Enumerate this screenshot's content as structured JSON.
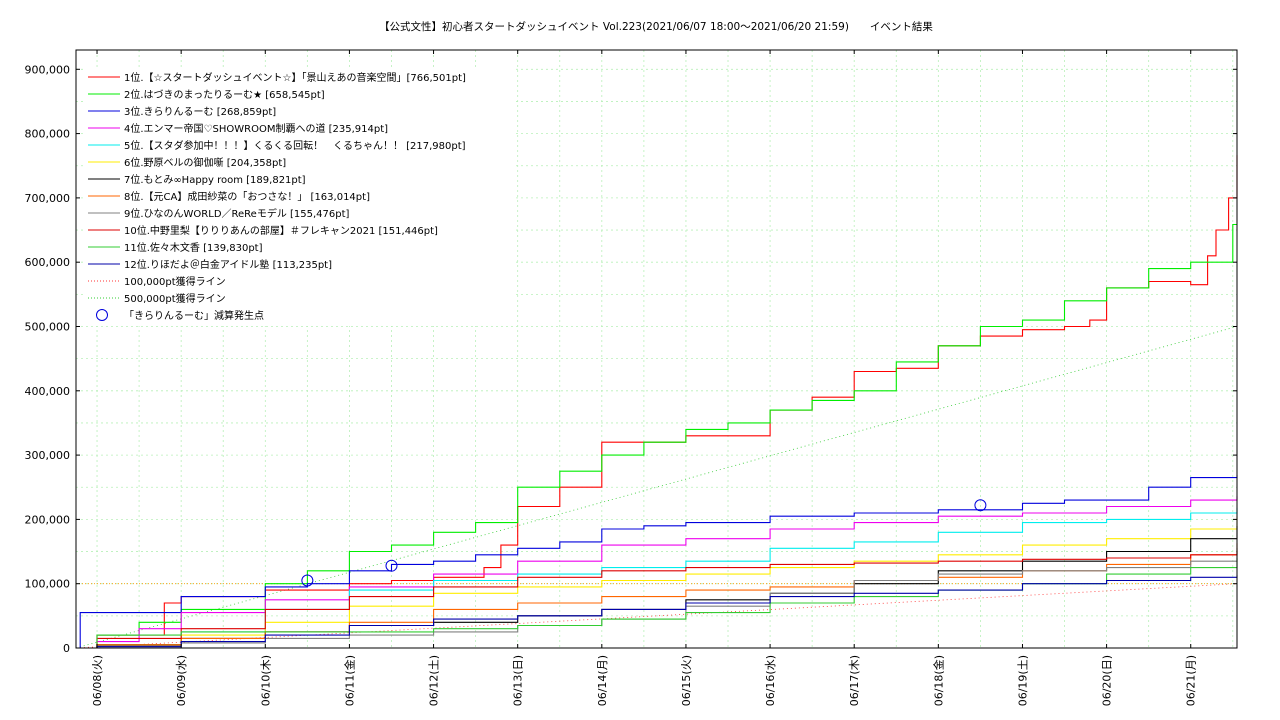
{
  "chart_data": {
    "type": "line",
    "title": "【公式文性】初心者スタートダッシュイベント Vol.223(2021/06/07 18:00〜2021/06/20 21:59)　　イベント結果",
    "xlabel": "",
    "ylabel": "",
    "ylim": [
      0,
      930000
    ],
    "xlim": [
      "2021-06-07 18:00",
      "2021-06-21 00:00"
    ],
    "grid": true,
    "legend_position": "top-left",
    "x_tick_labels": [
      "06/08(火)",
      "06/09(水)",
      "06/10(木)",
      "06/11(金)",
      "06/12(土)",
      "06/13(日)",
      "06/14(月)",
      "06/15(火)",
      "06/16(水)",
      "06/17(木)",
      "06/18(金)",
      "06/19(土)",
      "06/20(日)",
      "06/21(月)"
    ],
    "y_ticks": [
      0,
      100000,
      200000,
      300000,
      400000,
      500000,
      600000,
      700000,
      800000,
      900000
    ],
    "y_tick_labels": [
      "0",
      "100,000",
      "200,000",
      "300,000",
      "400,000",
      "500,000",
      "600,000",
      "700,000",
      "800,000",
      "900,000"
    ],
    "series": [
      {
        "name": "1位.【☆スタートダッシュイベント☆】「景山えあの音楽空間」[766,501pt]",
        "color": "#ff0000",
        "x": [
          -0.25,
          0.0,
          0.8,
          1.0,
          2.0,
          3.0,
          3.5,
          4.0,
          4.6,
          4.8,
          5.0,
          5.5,
          6.0,
          7.0,
          8.0,
          8.5,
          9.0,
          9.5,
          10.0,
          10.5,
          11.0,
          11.5,
          11.8,
          12.0,
          12.5,
          13.0,
          13.2,
          13.3,
          13.45,
          13.55
        ],
        "values": [
          0,
          20000,
          70000,
          80000,
          90000,
          100000,
          105000,
          110000,
          125000,
          160000,
          220000,
          250000,
          320000,
          330000,
          370000,
          390000,
          430000,
          435000,
          470000,
          485000,
          495000,
          500000,
          510000,
          560000,
          570000,
          565000,
          610000,
          650000,
          700000,
          766501
        ]
      },
      {
        "name": "2位.はづきのまったりるーむ★ [658,545pt]",
        "color": "#00ee00",
        "x": [
          -0.25,
          0.0,
          0.5,
          1.0,
          2.0,
          2.5,
          3.0,
          3.5,
          4.0,
          4.5,
          5.0,
          5.5,
          6.0,
          6.5,
          7.0,
          7.5,
          8.0,
          8.5,
          9.0,
          9.5,
          10.0,
          10.5,
          11.0,
          11.5,
          12.0,
          12.5,
          13.0,
          13.3,
          13.5,
          13.55
        ],
        "values": [
          0,
          20000,
          40000,
          60000,
          100000,
          120000,
          150000,
          160000,
          180000,
          195000,
          250000,
          275000,
          300000,
          320000,
          340000,
          350000,
          370000,
          385000,
          400000,
          445000,
          470000,
          500000,
          510000,
          540000,
          560000,
          590000,
          600000,
          600000,
          658545,
          658545
        ]
      },
      {
        "name": "3位.きらりんるーむ [268,859pt]",
        "color": "#0000dd",
        "x": [
          -0.25,
          -0.2,
          0.5,
          1.0,
          2.0,
          2.5,
          3.0,
          3.5,
          4.0,
          4.5,
          5.0,
          5.5,
          6.0,
          6.5,
          7.0,
          8.0,
          9.0,
          10.0,
          11.0,
          11.5,
          12.0,
          12.5,
          13.0,
          13.55
        ],
        "values": [
          0,
          55000,
          55000,
          80000,
          95000,
          100000,
          120000,
          130000,
          135000,
          145000,
          155000,
          165000,
          185000,
          190000,
          195000,
          205000,
          210000,
          215000,
          225000,
          230000,
          230000,
          250000,
          265000,
          268859
        ]
      },
      {
        "name": "4位.エンマー帝国♡SHOWROOM制覇への道 [235,914pt]",
        "color": "#ee00ee",
        "x": [
          -0.25,
          0.0,
          0.5,
          1.0,
          2.0,
          3.0,
          4.0,
          5.0,
          6.0,
          7.0,
          8.0,
          9.0,
          10.0,
          11.0,
          12.0,
          13.0,
          13.55
        ],
        "values": [
          0,
          10000,
          30000,
          55000,
          75000,
          95000,
          115000,
          135000,
          160000,
          170000,
          185000,
          195000,
          205000,
          210000,
          220000,
          230000,
          235914
        ]
      },
      {
        "name": "5位.【スタダ参加中！！！】くるくる回転！　くるちゃん！！ [217,980pt]",
        "color": "#00eeee",
        "x": [
          -0.25,
          0.0,
          1.0,
          2.0,
          3.0,
          4.0,
          5.0,
          6.0,
          7.0,
          8.0,
          9.0,
          10.0,
          11.0,
          12.0,
          13.0,
          13.55
        ],
        "values": [
          0,
          5000,
          25000,
          60000,
          90000,
          105000,
          115000,
          125000,
          135000,
          155000,
          165000,
          180000,
          195000,
          200000,
          210000,
          217980
        ]
      },
      {
        "name": "6位.野原ベルの御伽噺 [204,358pt]",
        "color": "#ffee00",
        "x": [
          -0.25,
          0.0,
          1.0,
          2.0,
          3.0,
          4.0,
          5.0,
          6.0,
          7.0,
          8.0,
          9.0,
          10.0,
          11.0,
          12.0,
          13.0,
          13.55
        ],
        "values": [
          0,
          5000,
          20000,
          40000,
          65000,
          85000,
          95000,
          105000,
          115000,
          125000,
          135000,
          145000,
          160000,
          170000,
          185000,
          204358
        ]
      },
      {
        "name": "7位.もとみ∞Happy room [189,821pt]",
        "color": "#000000",
        "x": [
          -0.25,
          0.0,
          1.0,
          2.0,
          3.0,
          4.0,
          5.0,
          6.0,
          7.0,
          8.0,
          9.0,
          10.0,
          11.0,
          12.0,
          13.0,
          13.55
        ],
        "values": [
          0,
          5000,
          15000,
          25000,
          35000,
          40000,
          50000,
          60000,
          75000,
          85000,
          100000,
          120000,
          135000,
          150000,
          170000,
          189821
        ]
      },
      {
        "name": "8位.【元CA】成田紗菜の「おつさな！」 [163,014pt]",
        "color": "#ff6600",
        "x": [
          -0.25,
          0.0,
          1.0,
          2.0,
          3.0,
          4.0,
          5.0,
          6.0,
          7.0,
          8.0,
          9.0,
          10.0,
          11.0,
          12.0,
          13.0,
          13.55
        ],
        "values": [
          0,
          5000,
          15000,
          25000,
          40000,
          60000,
          70000,
          80000,
          90000,
          95000,
          105000,
          110000,
          120000,
          130000,
          145000,
          163014
        ]
      },
      {
        "name": "9位.ひなのんWORLD／ReReモデル [155,476pt]",
        "color": "#808080",
        "x": [
          -0.25,
          0.0,
          1.0,
          2.0,
          3.0,
          4.0,
          5.0,
          6.0,
          7.0,
          8.0,
          9.0,
          10.0,
          11.0,
          12.0,
          13.0,
          13.55
        ],
        "values": [
          0,
          3000,
          8000,
          15000,
          20000,
          25000,
          35000,
          45000,
          65000,
          85000,
          105000,
          115000,
          120000,
          125000,
          135000,
          155476
        ]
      },
      {
        "name": "10位.中野里梨【りりりあんの部屋】＃フレキャン2021 [151,446pt]",
        "color": "#dd0000",
        "x": [
          -0.25,
          0.0,
          1.0,
          2.0,
          3.0,
          4.0,
          5.0,
          6.0,
          7.0,
          8.0,
          9.0,
          10.0,
          11.0,
          12.0,
          13.0,
          13.55
        ],
        "values": [
          0,
          15000,
          30000,
          60000,
          80000,
          95000,
          110000,
          120000,
          125000,
          130000,
          132000,
          135000,
          138000,
          140000,
          145000,
          151446
        ]
      },
      {
        "name": "11位.佐々木文香 [139,830pt]",
        "color": "#33cc33",
        "x": [
          -0.25,
          0.0,
          1.0,
          2.0,
          3.0,
          4.0,
          5.0,
          6.0,
          7.0,
          8.0,
          9.0,
          10.0,
          11.0,
          12.0,
          13.0,
          13.55
        ],
        "values": [
          0,
          20000,
          25000,
          25000,
          25000,
          30000,
          35000,
          45000,
          55000,
          70000,
          80000,
          90000,
          100000,
          115000,
          125000,
          139830
        ]
      },
      {
        "name": "12位.りほだよ＠白金アイドル塾 [113,235pt]",
        "color": "#0000aa",
        "x": [
          -0.25,
          0.0,
          1.0,
          2.0,
          3.0,
          4.0,
          5.0,
          6.0,
          7.0,
          8.0,
          9.0,
          10.0,
          11.0,
          12.0,
          13.0,
          13.55
        ],
        "values": [
          0,
          2000,
          10000,
          20000,
          35000,
          45000,
          50000,
          60000,
          70000,
          80000,
          85000,
          90000,
          100000,
          105000,
          110000,
          113235
        ]
      }
    ],
    "reference_lines": [
      {
        "name": "100,000pt獲得ライン",
        "color": "#ff3333",
        "x": [
          -0.25,
          13.55
        ],
        "values": [
          0,
          100000
        ]
      },
      {
        "name": "500,000pt獲得ライン",
        "color": "#33cc33",
        "x": [
          -0.25,
          13.55
        ],
        "values": [
          0,
          500000
        ]
      }
    ],
    "markers": {
      "name": "「きらりんるーむ」減算発生点",
      "color": "#0000dd",
      "x": [
        2.5,
        3.5,
        10.5
      ],
      "values": [
        105000,
        128000,
        222000
      ]
    }
  }
}
